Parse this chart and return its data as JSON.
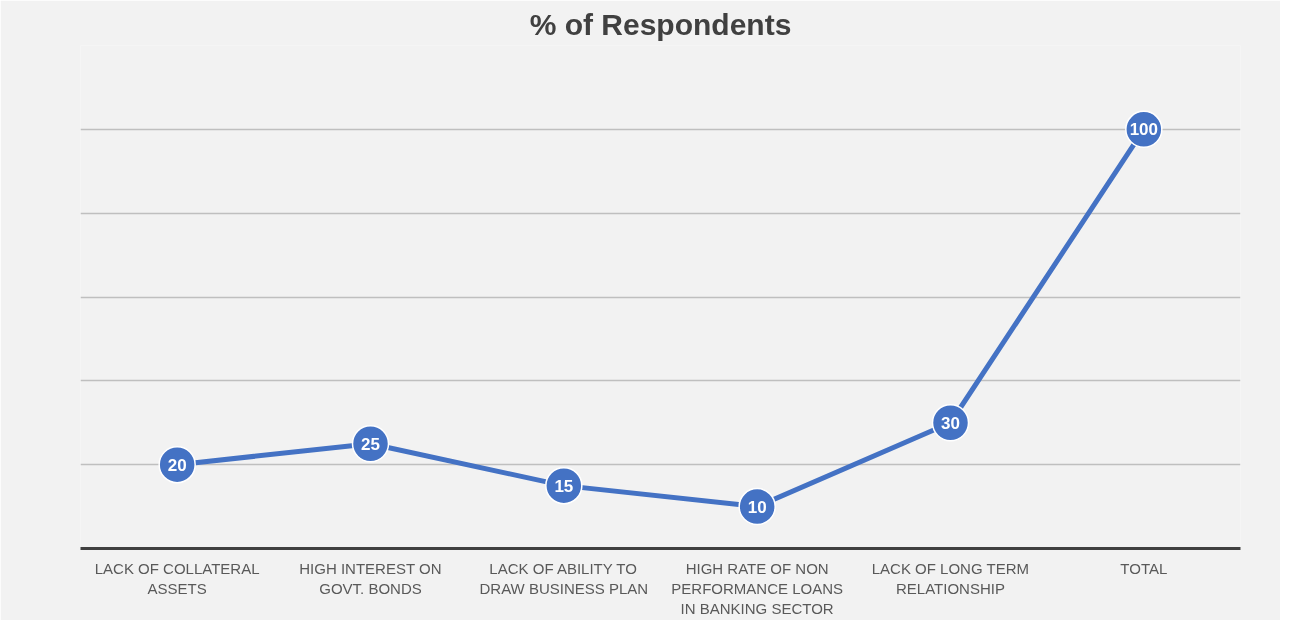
{
  "chart_data": {
    "type": "line",
    "title": "% of Respondents",
    "categories": [
      "LACK OF COLLATERAL ASSETS",
      "HIGH INTEREST ON GOVT. BONDS",
      "LACK OF ABILITY TO DRAW BUSINESS PLAN",
      "HIGH RATE OF NON PERFORMANCE LOANS IN BANKING SECTOR",
      "LACK OF LONG TERM RELATIONSHIP",
      "TOTAL"
    ],
    "series": [
      {
        "color": "#4472c4",
        "values": [
          20,
          25,
          15,
          10,
          30,
          100
        ]
      }
    ],
    "ylim": [
      0,
      120
    ],
    "yticks": [
      {
        "value": 0,
        "label": null
      },
      {
        "value": 20,
        "label": null
      },
      {
        "value": 40,
        "label": null
      },
      {
        "value": 60,
        "label": null
      },
      {
        "value": 80,
        "label": null
      },
      {
        "value": 100,
        "label": null
      },
      {
        "value": 120,
        "label": null
      }
    ],
    "tick_labels": "x",
    "grid": "y",
    "marker": "circle",
    "line_style": "solid",
    "data_labels": true
  }
}
